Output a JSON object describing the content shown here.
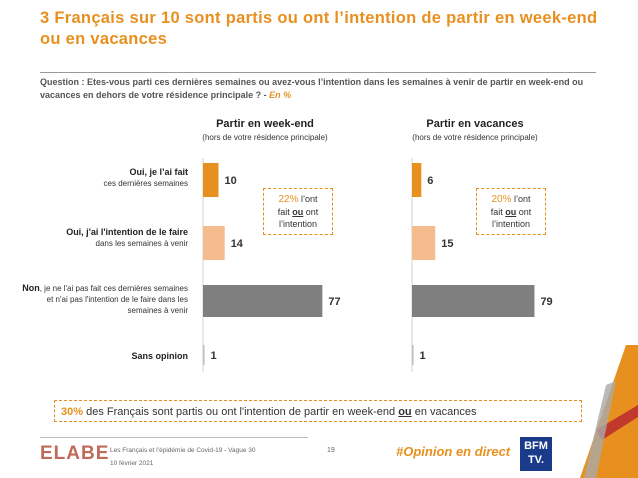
{
  "title": "3 Français sur 10 sont partis ou ont l’intention de partir en week-end ou en vacances",
  "question": {
    "text": "Question : Etes-vous parti ces dernières semaines ou avez-vous l’intention dans les semaines à venir de partir en week-end ou vacances en dehors de votre résidence principale ? - ",
    "unit": "En %"
  },
  "chart_data": [
    {
      "type": "bar",
      "title": "Partir en week-end",
      "subtitle": "(hors de votre résidence principale)",
      "categories": [
        "Oui, je l’ai fait",
        "Oui, j'ai l'intention de le faire",
        "Non",
        "Sans opinion"
      ],
      "values": [
        10,
        14,
        77,
        1
      ],
      "colors": [
        "#e8901f",
        "#f5bd8e",
        "#7f7f7f",
        "#bfbfbf"
      ],
      "callout": {
        "pct": "22%",
        "text1": " l’ont",
        "text2a": "fait ",
        "text2b": "ou",
        "text2c": " ont",
        "text3": "l’intention"
      }
    },
    {
      "type": "bar",
      "title": "Partir en vacances",
      "subtitle": "(hors de votre résidence principale)",
      "categories": [
        "Oui, je l’ai fait",
        "Oui, j'ai l'intention de le faire",
        "Non",
        "Sans opinion"
      ],
      "values": [
        6,
        15,
        79,
        1
      ],
      "colors": [
        "#e8901f",
        "#f5bd8e",
        "#7f7f7f",
        "#bfbfbf"
      ],
      "callout": {
        "pct": "20%",
        "text1": " l’ont",
        "text2a": "fait ",
        "text2b": "ou",
        "text2c": " ont",
        "text3": "l’intention"
      }
    }
  ],
  "row_labels": [
    {
      "main": "Oui, je l’ai fait",
      "sub": "ces dernières semaines"
    },
    {
      "main": "Oui, j'ai l'intention de le faire",
      "sub": "dans les semaines à venir"
    },
    {
      "main": "Non",
      "sub": ", je ne l'ai pas fait ces dernières semaines et n'ai pas l'intention de le faire dans les semaines à venir"
    },
    {
      "main": "Sans opinion",
      "sub": ""
    }
  ],
  "summary": {
    "pct": "30%",
    "text_before": " des Français sont partis ou ont l'intention de partir en week-end ",
    "ou": "ou",
    "text_after": " en vacances"
  },
  "footer": {
    "logo": "ELABE",
    "source": "Les Français et l’épidémie de Covid-19 - Vague 30",
    "date": "10 février 2021",
    "page": "19",
    "hashtag": "#Opinion en direct",
    "partner": "BFM TV."
  }
}
